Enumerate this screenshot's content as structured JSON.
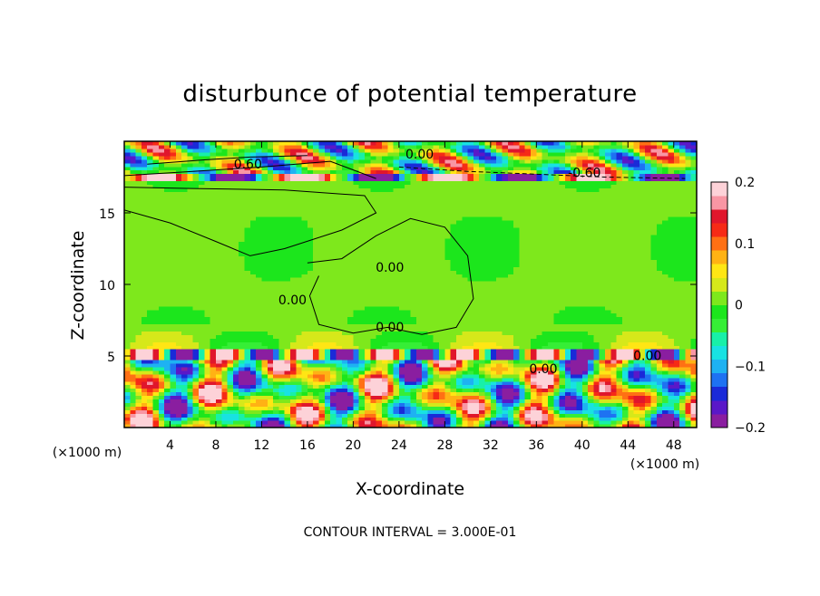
{
  "chart_data": {
    "type": "heatmap",
    "title": "disturbunce of potential temperature",
    "xlabel": "X-coordinate",
    "ylabel": "Z-coordinate",
    "x_unit": "(×1000 m)",
    "y_unit": "(×1000 m)",
    "xlim": [
      0,
      50
    ],
    "ylim": [
      0,
      20
    ],
    "x_ticks": [
      4,
      8,
      12,
      16,
      20,
      24,
      28,
      32,
      36,
      40,
      44,
      48
    ],
    "y_ticks": [
      5,
      10,
      15
    ],
    "colorbar": {
      "range": [
        -0.2,
        0.2
      ],
      "tick_labels": [
        "0.2",
        "0.1",
        "0",
        "−0.1",
        "−0.2"
      ],
      "tick_values": [
        0.2,
        0.1,
        0,
        -0.1,
        -0.2
      ],
      "colors": [
        "#8a1ea0",
        "#5a18c8",
        "#1a2ad8",
        "#1e72f2",
        "#1eb2f2",
        "#18e2e2",
        "#18f0a8",
        "#36ee36",
        "#1ce61c",
        "#7ee81c",
        "#d6e81a",
        "#ffe614",
        "#ffb214",
        "#ff7014",
        "#f62a16",
        "#e0162c",
        "#f896a4",
        "#fdd2d8"
      ]
    },
    "contour_labels": [
      {
        "text": "0.60",
        "x": 10.8,
        "y": 18.1
      },
      {
        "text": "0.00",
        "x": 25.8,
        "y": 18.8
      },
      {
        "text": "-0.60",
        "x": 40.2,
        "y": 17.5
      },
      {
        "text": "0.00",
        "x": 14.7,
        "y": 8.6
      },
      {
        "text": "0.00",
        "x": 23.2,
        "y": 6.7
      },
      {
        "text": "0.00",
        "x": 23.2,
        "y": 10.9
      },
      {
        "text": "0.00",
        "x": 36.6,
        "y": 3.8
      },
      {
        "text": "0.00",
        "x": 45.7,
        "y": 4.7
      }
    ],
    "contour_interval_text": "CONTOUR INTERVAL = 3.000E-01"
  }
}
